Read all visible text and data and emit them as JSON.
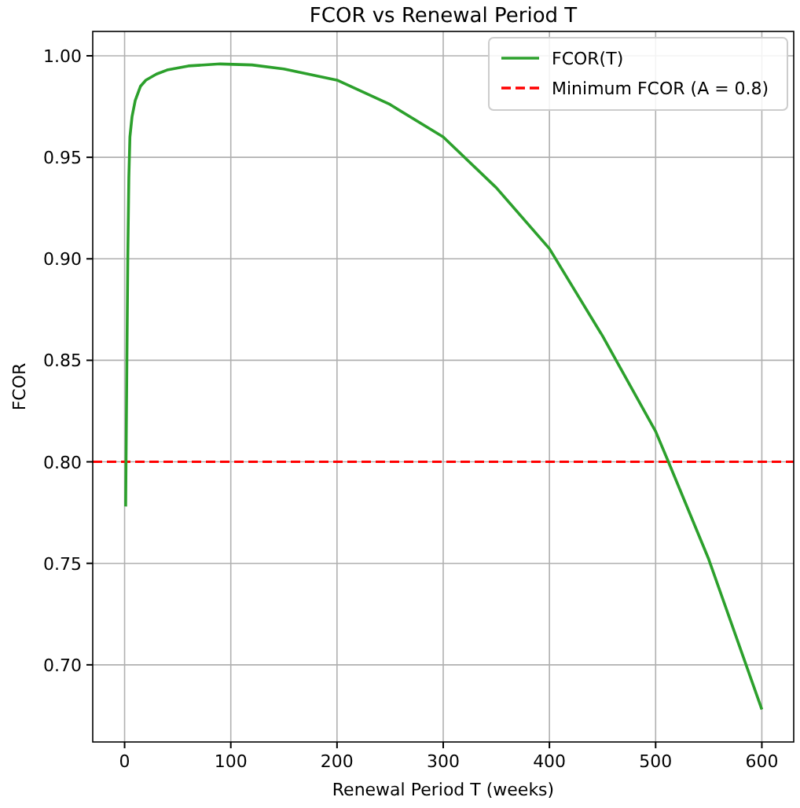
{
  "chart_data": {
    "type": "line",
    "title": "FCOR vs Renewal Period T",
    "xlabel": "Renewal Period T (weeks)",
    "ylabel": "FCOR",
    "xlim": [
      -30,
      630
    ],
    "ylim": [
      0.662,
      1.012
    ],
    "xticks": [
      0,
      100,
      200,
      300,
      400,
      500,
      600
    ],
    "yticks": [
      {
        "value": 0.7,
        "label": "0.70"
      },
      {
        "value": 0.75,
        "label": "0.75"
      },
      {
        "value": 0.8,
        "label": "0.80"
      },
      {
        "value": 0.85,
        "label": "0.85"
      },
      {
        "value": 0.9,
        "label": "0.90"
      },
      {
        "value": 0.95,
        "label": "0.95"
      },
      {
        "value": 1.0,
        "label": "1.00"
      }
    ],
    "grid": true,
    "legend": "top right",
    "line_style": "solid",
    "marker": "none",
    "series": [
      {
        "name": "FCOR(T)",
        "color": "#2ca02c",
        "x": [
          1,
          2,
          3,
          4,
          5,
          7,
          10,
          15,
          20,
          30,
          40,
          60,
          90,
          120,
          150,
          200,
          250,
          300,
          350,
          400,
          450,
          500,
          512,
          550,
          600
        ],
        "values": [
          0.778,
          0.84,
          0.9,
          0.94,
          0.96,
          0.97,
          0.978,
          0.985,
          0.988,
          0.991,
          0.993,
          0.995,
          0.996,
          0.9955,
          0.9935,
          0.988,
          0.976,
          0.96,
          0.935,
          0.905,
          0.862,
          0.815,
          0.8,
          0.752,
          0.678
        ]
      }
    ],
    "ref_lines": [
      {
        "axis": "y",
        "value": 0.8,
        "label": "Minimum FCOR (A = 0.8)",
        "color": "#ff0000",
        "line_style": "dashed"
      }
    ]
  }
}
